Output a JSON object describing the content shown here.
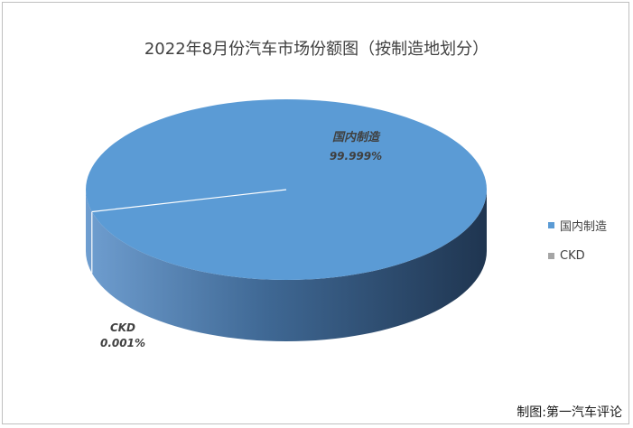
{
  "chart_data": {
    "type": "pie",
    "title": "2022年8月份汽车市场份额图（按制造地划分）",
    "slices": [
      {
        "label": "国内制造",
        "value": 99.999,
        "display": "99.999%",
        "color": "#5b9bd5"
      },
      {
        "label": "CKD",
        "value": 0.001,
        "display": "0.001%",
        "color": "#a5a5a5"
      }
    ],
    "legend_position": "right",
    "style": "3d-pie"
  },
  "credit": "制图:第一汽车评论"
}
